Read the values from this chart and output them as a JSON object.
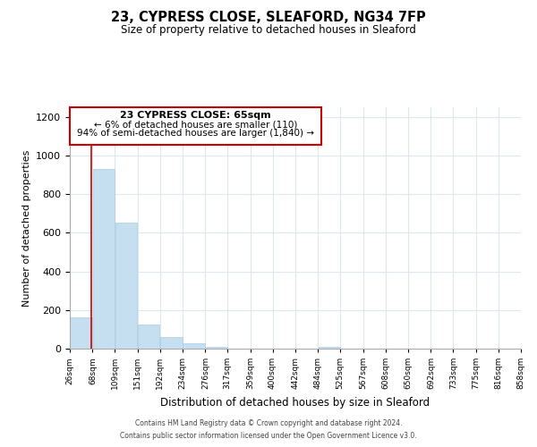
{
  "title": "23, CYPRESS CLOSE, SLEAFORD, NG34 7FP",
  "subtitle": "Size of property relative to detached houses in Sleaford",
  "xlabel": "Distribution of detached houses by size in Sleaford",
  "ylabel": "Number of detached properties",
  "bar_color": "#c5dff0",
  "bar_edge_color": "#a8cce0",
  "annotation_box_color": "#cc0000",
  "vline_color": "#cc0000",
  "vline_x": 65,
  "annotation_title": "23 CYPRESS CLOSE: 65sqm",
  "annotation_line1": "← 6% of detached houses are smaller (110)",
  "annotation_line2": "94% of semi-detached houses are larger (1,840) →",
  "bin_edges": [
    26,
    68,
    109,
    151,
    192,
    234,
    276,
    317,
    359,
    400,
    442,
    484,
    525,
    567,
    608,
    650,
    692,
    733,
    775,
    816,
    858
  ],
  "bar_heights": [
    160,
    930,
    655,
    125,
    60,
    28,
    10,
    0,
    0,
    0,
    0,
    10,
    0,
    0,
    0,
    0,
    0,
    0,
    0,
    0
  ],
  "ylim": [
    0,
    1250
  ],
  "yticks": [
    0,
    200,
    400,
    600,
    800,
    1000,
    1200
  ],
  "footer_line1": "Contains HM Land Registry data © Crown copyright and database right 2024.",
  "footer_line2": "Contains public sector information licensed under the Open Government Licence v3.0.",
  "background_color": "#ffffff",
  "grid_color": "#dce8f0"
}
